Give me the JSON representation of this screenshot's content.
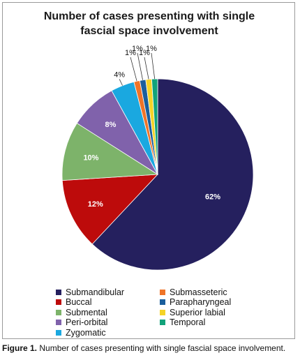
{
  "caption": {
    "label": "Figure 1.",
    "text": "Number of cases presenting with single fascial space involvement."
  },
  "chart_data": {
    "type": "pie",
    "title": [
      "Number of cases presenting with single",
      "fascial space involvement"
    ],
    "legend_position": "bottom",
    "slices": [
      {
        "name": "Submandibular",
        "value": 62,
        "label": "62%",
        "color": "#25205e"
      },
      {
        "name": "Buccal",
        "value": 12,
        "label": "12%",
        "color": "#bd0b0b"
      },
      {
        "name": "Submental",
        "value": 10,
        "label": "10%",
        "color": "#7db36a"
      },
      {
        "name": "Peri-orbital",
        "value": 8,
        "label": "8%",
        "color": "#8062ab"
      },
      {
        "name": "Zygomatic",
        "value": 4,
        "label": "4%",
        "color": "#1aa8e0"
      },
      {
        "name": "Submasseteric",
        "value": 1,
        "label": "1%",
        "color": "#ef7428"
      },
      {
        "name": "Parapharyngeal",
        "value": 1,
        "label": "1%",
        "color": "#1a5e9c"
      },
      {
        "name": "Superior labial",
        "value": 1,
        "label": "1%",
        "color": "#f5d327"
      },
      {
        "name": "Temporal",
        "value": 1,
        "label": "1%",
        "color": "#12a27a"
      }
    ]
  }
}
